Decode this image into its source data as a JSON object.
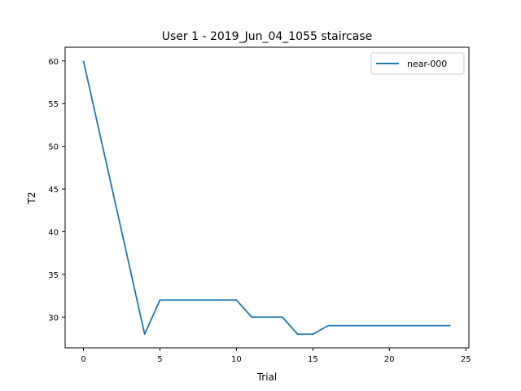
{
  "chart_data": {
    "type": "line",
    "title": "User 1 - 2019_Jun_04_1055 staircase",
    "xlabel": "Trial",
    "ylabel": "T2",
    "xlim": [
      -1.2,
      25.2
    ],
    "ylim": [
      26.4,
      61.6
    ],
    "xticks": [
      0,
      5,
      10,
      15,
      20,
      25
    ],
    "yticks": [
      30,
      35,
      40,
      45,
      50,
      55,
      60
    ],
    "grid": false,
    "legend_position": "top-right",
    "series": [
      {
        "name": "near-000",
        "color": "#1f77b4",
        "x": [
          0,
          1,
          2,
          3,
          4,
          5,
          6,
          7,
          8,
          9,
          10,
          11,
          12,
          13,
          14,
          15,
          16,
          17,
          18,
          19,
          20,
          21,
          22,
          23,
          24
        ],
        "y": [
          60,
          52,
          44,
          36,
          28,
          32,
          32,
          32,
          32,
          32,
          32,
          30,
          30,
          30,
          28,
          28,
          29,
          29,
          29,
          29,
          29,
          29,
          29,
          29,
          29
        ]
      }
    ]
  }
}
